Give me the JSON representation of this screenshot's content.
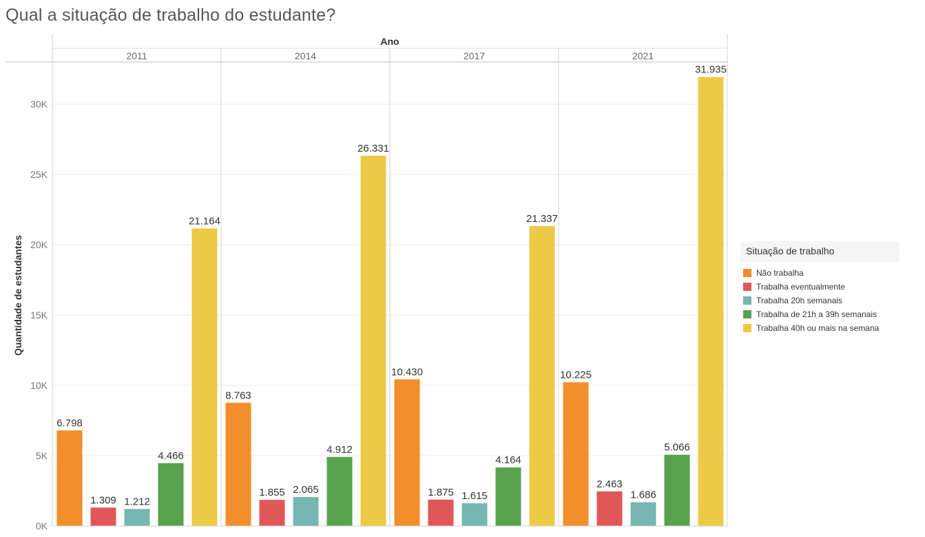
{
  "title": "Qual a situação de trabalho do estudante?",
  "chart_data": {
    "type": "bar",
    "column_header": "Ano",
    "categories": [
      "2011",
      "2014",
      "2017",
      "2021"
    ],
    "ylabel": "Quantidade de estudantes",
    "ylim": [
      0,
      33000
    ],
    "yticks": [
      0,
      5000,
      10000,
      15000,
      20000,
      25000,
      30000
    ],
    "ytick_labels": [
      "0K",
      "5K",
      "10K",
      "15K",
      "20K",
      "25K",
      "30K"
    ],
    "series": [
      {
        "name": "Não trabalha",
        "color": "#F28E2B",
        "values": [
          6798,
          8763,
          10430,
          10225
        ],
        "labels": [
          "6.798",
          "8.763",
          "10.430",
          "10.225"
        ]
      },
      {
        "name": "Trabalha eventualmente",
        "color": "#E15759",
        "values": [
          1309,
          1855,
          1875,
          2463
        ],
        "labels": [
          "1.309",
          "1.855",
          "1.875",
          "2.463"
        ]
      },
      {
        "name": "Trabalha 20h semanais",
        "color": "#76B7B2",
        "values": [
          1212,
          2065,
          1615,
          1686
        ],
        "labels": [
          "1.212",
          "2.065",
          "1.615",
          "1.686"
        ]
      },
      {
        "name": "Trabalha de 21h a 39h semanais",
        "color": "#59A14F",
        "values": [
          4466,
          4912,
          4164,
          5066
        ],
        "labels": [
          "4.466",
          "4.912",
          "4.164",
          "5.066"
        ]
      },
      {
        "name": "Trabalha 40h ou mais na semana",
        "color": "#EDC948",
        "values": [
          21164,
          26331,
          21337,
          31935
        ],
        "labels": [
          "21.164",
          "26.331",
          "21.337",
          "31.935"
        ]
      }
    ],
    "legend": {
      "title": "Situação de trabalho",
      "position": "right"
    },
    "grid": true
  }
}
